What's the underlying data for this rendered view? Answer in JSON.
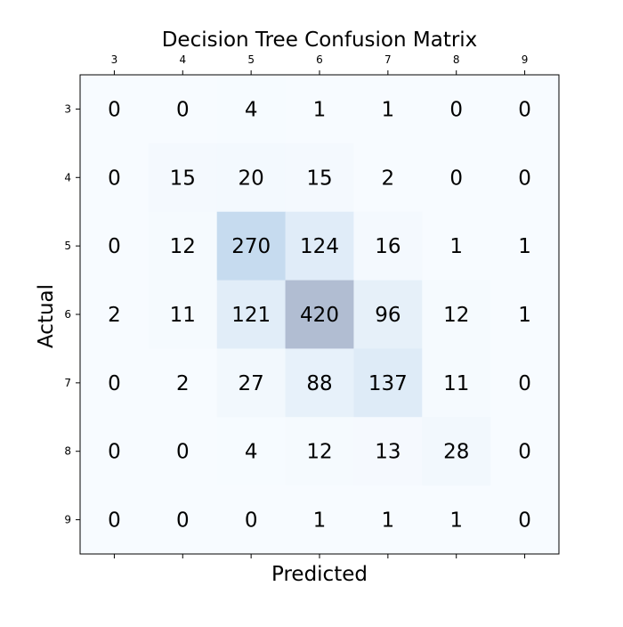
{
  "chart_data": {
    "type": "heatmap",
    "title": "Decision Tree Confusion Matrix",
    "xlabel": "Predicted",
    "ylabel": "Actual",
    "x_categories": [
      "3",
      "4",
      "5",
      "6",
      "7",
      "8",
      "9"
    ],
    "y_categories": [
      "3",
      "4",
      "5",
      "6",
      "7",
      "8",
      "9"
    ],
    "x_tick_position": "top",
    "grid": false,
    "colorbar": false,
    "colormap": {
      "low": "#f7fbff",
      "mid": "#c6dbef",
      "high": "#b1bdd2",
      "value_max": 420
    },
    "values": [
      [
        0,
        0,
        4,
        1,
        1,
        0,
        0
      ],
      [
        0,
        15,
        20,
        15,
        2,
        0,
        0
      ],
      [
        0,
        12,
        270,
        124,
        16,
        1,
        1
      ],
      [
        2,
        11,
        121,
        420,
        96,
        12,
        1
      ],
      [
        0,
        2,
        27,
        88,
        137,
        11,
        0
      ],
      [
        0,
        0,
        4,
        12,
        13,
        28,
        0
      ],
      [
        0,
        0,
        0,
        1,
        1,
        1,
        0
      ]
    ]
  }
}
